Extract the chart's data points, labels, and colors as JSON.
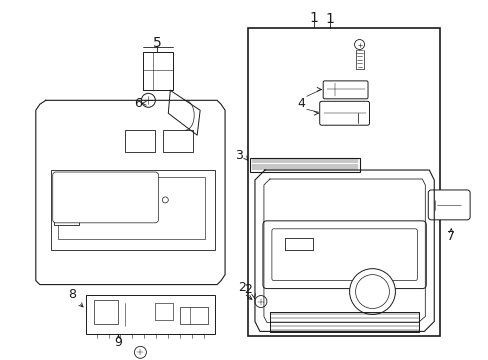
{
  "background_color": "#ffffff",
  "line_color": "#1a1a1a",
  "fig_width": 4.89,
  "fig_height": 3.6,
  "dpi": 100,
  "label_fs": 9,
  "lw": 0.7
}
